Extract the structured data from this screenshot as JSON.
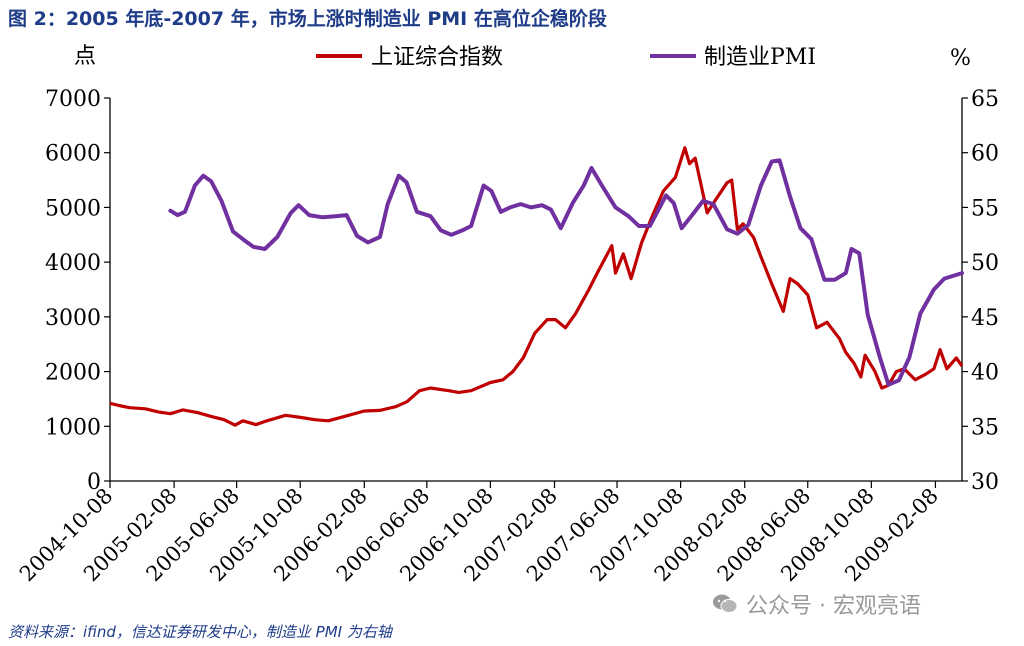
{
  "header": {
    "title": "图 2：2005 年底-2007 年，市场上涨时制造业 PMI 在高位企稳阶段"
  },
  "footer": {
    "source": "资料来源：ifind，信达证券研发中心，制造业 PMI 为右轴"
  },
  "watermark": {
    "icon": "wechat-icon",
    "text": "公众号 · 宏观亮语"
  },
  "chart_data": {
    "type": "line",
    "title": "图 2：2005 年底-2007 年，市场上涨时制造业 PMI 在高位企稳阶段",
    "left_axis": {
      "unit_label": "点",
      "range": [
        0,
        7000
      ],
      "ticks": [
        "0",
        "1000",
        "2000",
        "3000",
        "4000",
        "5000",
        "6000",
        "7000"
      ]
    },
    "right_axis": {
      "unit_label": "%",
      "range": [
        30,
        65
      ],
      "ticks": [
        "30",
        "35",
        "40",
        "45",
        "50",
        "55",
        "60",
        "65"
      ]
    },
    "x_axis": {
      "start": "2004-10-08",
      "end": "2009-03-31",
      "ticks": [
        "2004-10-08",
        "2005-02-08",
        "2005-06-08",
        "2005-10-08",
        "2006-02-08",
        "2006-06-08",
        "2006-10-08",
        "2007-02-08",
        "2007-06-08",
        "2007-10-08",
        "2008-02-08",
        "2008-06-08",
        "2008-10-08",
        "2009-02-08"
      ]
    },
    "legend": [
      "上证综合指数",
      "制造业PMI"
    ],
    "colors": {
      "sse": "#c00000",
      "pmi": "#7030a0",
      "title": "#1f3c88"
    },
    "series": [
      {
        "name": "上证综合指数",
        "axis": "left",
        "points": [
          [
            "2004-10-08",
            1420
          ],
          [
            "2004-10-25",
            1380
          ],
          [
            "2004-11-15",
            1340
          ],
          [
            "2004-12-15",
            1320
          ],
          [
            "2005-01-10",
            1260
          ],
          [
            "2005-02-01",
            1230
          ],
          [
            "2005-02-25",
            1300
          ],
          [
            "2005-03-25",
            1250
          ],
          [
            "2005-04-20",
            1180
          ],
          [
            "2005-05-15",
            1120
          ],
          [
            "2005-06-05",
            1020
          ],
          [
            "2005-06-20",
            1100
          ],
          [
            "2005-07-15",
            1030
          ],
          [
            "2005-08-05",
            1100
          ],
          [
            "2005-09-10",
            1200
          ],
          [
            "2005-10-10",
            1160
          ],
          [
            "2005-11-05",
            1120
          ],
          [
            "2005-12-01",
            1100
          ],
          [
            "2006-01-01",
            1180
          ],
          [
            "2006-02-08",
            1280
          ],
          [
            "2006-03-10",
            1290
          ],
          [
            "2006-04-10",
            1360
          ],
          [
            "2006-05-01",
            1450
          ],
          [
            "2006-05-25",
            1650
          ],
          [
            "2006-06-15",
            1700
          ],
          [
            "2006-07-20",
            1650
          ],
          [
            "2006-08-08",
            1620
          ],
          [
            "2006-09-01",
            1650
          ],
          [
            "2006-10-08",
            1800
          ],
          [
            "2006-11-01",
            1850
          ],
          [
            "2006-11-20",
            2000
          ],
          [
            "2006-12-10",
            2250
          ],
          [
            "2007-01-01",
            2700
          ],
          [
            "2007-01-25",
            2950
          ],
          [
            "2007-02-10",
            2950
          ],
          [
            "2007-03-01",
            2800
          ],
          [
            "2007-03-20",
            3050
          ],
          [
            "2007-04-15",
            3500
          ],
          [
            "2007-05-01",
            3800
          ],
          [
            "2007-05-29",
            4300
          ],
          [
            "2007-06-05",
            3800
          ],
          [
            "2007-06-20",
            4150
          ],
          [
            "2007-07-05",
            3700
          ],
          [
            "2007-07-25",
            4350
          ],
          [
            "2007-08-15",
            4850
          ],
          [
            "2007-09-05",
            5300
          ],
          [
            "2007-09-28",
            5550
          ],
          [
            "2007-10-16",
            6090
          ],
          [
            "2007-10-25",
            5800
          ],
          [
            "2007-11-05",
            5900
          ],
          [
            "2007-11-28",
            4900
          ],
          [
            "2007-12-15",
            5150
          ],
          [
            "2008-01-05",
            5450
          ],
          [
            "2008-01-14",
            5500
          ],
          [
            "2008-01-25",
            4600
          ],
          [
            "2008-02-05",
            4700
          ],
          [
            "2008-02-25",
            4450
          ],
          [
            "2008-03-10",
            4100
          ],
          [
            "2008-03-31",
            3600
          ],
          [
            "2008-04-22",
            3100
          ],
          [
            "2008-05-05",
            3700
          ],
          [
            "2008-05-20",
            3600
          ],
          [
            "2008-06-08",
            3400
          ],
          [
            "2008-06-25",
            2800
          ],
          [
            "2008-07-15",
            2900
          ],
          [
            "2008-08-08",
            2600
          ],
          [
            "2008-08-20",
            2350
          ],
          [
            "2008-09-05",
            2150
          ],
          [
            "2008-09-18",
            1900
          ],
          [
            "2008-09-26",
            2300
          ],
          [
            "2008-10-15",
            2000
          ],
          [
            "2008-10-28",
            1700
          ],
          [
            "2008-11-10",
            1750
          ],
          [
            "2008-11-25",
            2000
          ],
          [
            "2008-12-10",
            2050
          ],
          [
            "2008-12-31",
            1850
          ],
          [
            "2009-01-20",
            1950
          ],
          [
            "2009-02-05",
            2050
          ],
          [
            "2009-02-17",
            2400
          ],
          [
            "2009-03-02",
            2050
          ],
          [
            "2009-03-20",
            2250
          ],
          [
            "2009-03-31",
            2100
          ]
        ]
      },
      {
        "name": "制造业PMI",
        "axis": "right",
        "points": [
          [
            "2005-02-01",
            54.7
          ],
          [
            "2005-02-15",
            54.3
          ],
          [
            "2005-03-01",
            54.6
          ],
          [
            "2005-03-20",
            57.0
          ],
          [
            "2005-04-05",
            57.9
          ],
          [
            "2005-04-20",
            57.4
          ],
          [
            "2005-05-10",
            55.6
          ],
          [
            "2005-06-01",
            52.8
          ],
          [
            "2005-06-20",
            52.1
          ],
          [
            "2005-07-10",
            51.4
          ],
          [
            "2005-08-01",
            51.2
          ],
          [
            "2005-08-25",
            52.3
          ],
          [
            "2005-09-20",
            54.5
          ],
          [
            "2005-10-05",
            55.2
          ],
          [
            "2005-10-25",
            54.3
          ],
          [
            "2005-11-20",
            54.1
          ],
          [
            "2005-12-15",
            54.2
          ],
          [
            "2006-01-05",
            54.3
          ],
          [
            "2006-01-25",
            52.4
          ],
          [
            "2006-02-15",
            51.8
          ],
          [
            "2006-03-10",
            52.3
          ],
          [
            "2006-03-25",
            55.3
          ],
          [
            "2006-04-15",
            57.9
          ],
          [
            "2006-04-30",
            57.3
          ],
          [
            "2006-05-20",
            54.6
          ],
          [
            "2006-06-15",
            54.2
          ],
          [
            "2006-07-05",
            52.9
          ],
          [
            "2006-07-25",
            52.5
          ],
          [
            "2006-08-15",
            52.9
          ],
          [
            "2006-09-01",
            53.3
          ],
          [
            "2006-09-25",
            57.0
          ],
          [
            "2006-10-10",
            56.5
          ],
          [
            "2006-10-28",
            54.6
          ],
          [
            "2006-11-15",
            55.0
          ],
          [
            "2006-12-05",
            55.3
          ],
          [
            "2006-12-25",
            55.0
          ],
          [
            "2007-01-15",
            55.2
          ],
          [
            "2007-02-01",
            54.8
          ],
          [
            "2007-02-20",
            53.1
          ],
          [
            "2007-03-15",
            55.4
          ],
          [
            "2007-04-05",
            57.0
          ],
          [
            "2007-04-20",
            58.6
          ],
          [
            "2007-05-10",
            57.0
          ],
          [
            "2007-06-05",
            55.0
          ],
          [
            "2007-06-30",
            54.2
          ],
          [
            "2007-07-20",
            53.3
          ],
          [
            "2007-08-10",
            53.3
          ],
          [
            "2007-09-10",
            56.1
          ],
          [
            "2007-09-25",
            55.4
          ],
          [
            "2007-10-10",
            53.1
          ],
          [
            "2007-10-30",
            54.3
          ],
          [
            "2007-11-20",
            55.6
          ],
          [
            "2007-12-10",
            55.3
          ],
          [
            "2008-01-05",
            53.0
          ],
          [
            "2008-01-25",
            52.6
          ],
          [
            "2008-02-15",
            53.4
          ],
          [
            "2008-03-10",
            57.0
          ],
          [
            "2008-03-31",
            59.2
          ],
          [
            "2008-04-15",
            59.3
          ],
          [
            "2008-05-05",
            56.0
          ],
          [
            "2008-05-25",
            53.1
          ],
          [
            "2008-06-15",
            52.1
          ],
          [
            "2008-07-10",
            48.4
          ],
          [
            "2008-07-30",
            48.4
          ],
          [
            "2008-08-20",
            49.0
          ],
          [
            "2008-08-31",
            51.2
          ],
          [
            "2008-09-15",
            50.8
          ],
          [
            "2008-10-01",
            45.2
          ],
          [
            "2008-10-25",
            41.2
          ],
          [
            "2008-11-10",
            38.8
          ],
          [
            "2008-11-30",
            39.2
          ],
          [
            "2008-12-20",
            41.3
          ],
          [
            "2009-01-10",
            45.3
          ],
          [
            "2009-02-05",
            47.5
          ],
          [
            "2009-02-25",
            48.5
          ],
          [
            "2009-03-31",
            49.0
          ]
        ]
      }
    ]
  }
}
